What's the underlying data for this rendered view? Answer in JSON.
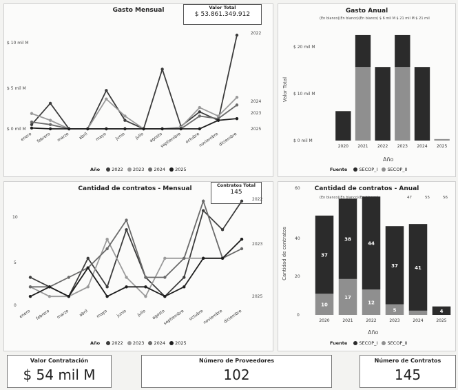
{
  "colors": {
    "y2022": "#3c3c3c",
    "y2023": "#9a9a9a",
    "y2024": "#6a6a6a",
    "y2025": "#1e1e1e",
    "secop1": "#2b2b2b",
    "secop2": "#8f8f8f"
  },
  "gasto_mensual": {
    "title": "Gasto Mensual",
    "total_label": "Valor Total",
    "total_value": "$ 53.861.349.912",
    "y_ticks": [
      "$ 10 mil M",
      "$ 5 mil M",
      "$ 0 mil M"
    ],
    "end_labels": [
      "2022",
      "2024",
      "2023",
      "2025"
    ],
    "legend_title": "Año",
    "legend_items": [
      "2022",
      "2023",
      "2024",
      "2025"
    ]
  },
  "gasto_anual": {
    "title": "Gasto Anual",
    "subtitle": "(En blanco)(En blanco)(En blanco)  $ 6 mil M $ 21 mil M $ 21 mil",
    "y_label": "Valor Total",
    "x_label": "Año",
    "y_ticks": [
      "$ 20 mil M",
      "$ 10 mil M",
      "$ 0 mil M"
    ],
    "legend_title": "Fuente",
    "legend_items": [
      "SECOP_I",
      "SECOP_II"
    ]
  },
  "contratos_mensual": {
    "title": "Cantidad de contratos - Mensual",
    "total_label": "Contratos Total",
    "total_value": "145",
    "y_ticks": [
      "10",
      "5",
      "0"
    ],
    "end_labels": [
      "2022",
      "2023",
      "2025"
    ],
    "legend_title": "Año",
    "legend_items": [
      "2022",
      "2023",
      "2024",
      "2025"
    ]
  },
  "contratos_anual": {
    "title": "Cantidad de contratos - Anual",
    "subtitle": "(En blanco)(En blanco)(En blanco)",
    "top_values": [
      "47",
      "55",
      "56"
    ],
    "y_label": "Cantidad de contratos",
    "x_label": "Año",
    "y_ticks": [
      "60",
      "40",
      "20",
      "0"
    ],
    "legend_title": "Fuente",
    "legend_items": [
      "SECOP_I",
      "SECOP_II"
    ]
  },
  "cards": {
    "valor_label": "Valor Contratación",
    "valor_value": "$ 54 mil M",
    "prov_label": "Número de Proveedores",
    "prov_value": "102",
    "contr_label": "Número de Contratos",
    "contr_value": "145"
  },
  "chart_data": [
    {
      "type": "line",
      "title": "Gasto Mensual",
      "categories": [
        "enero",
        "febrero",
        "marzo",
        "abril",
        "mayo",
        "junio",
        "julio",
        "agosto",
        "septiembre",
        "octubre",
        "noviembre",
        "diciembre"
      ],
      "ylim": [
        0,
        11
      ],
      "series": [
        {
          "name": "2022",
          "values": [
            0.5,
            3,
            0,
            0,
            4.5,
            1,
            0,
            7,
            0.3,
            2,
            1,
            11
          ]
        },
        {
          "name": "2023",
          "values": [
            1.8,
            1,
            0,
            0,
            3.5,
            1.5,
            0,
            0,
            0.2,
            2.5,
            1.5,
            3.7
          ]
        },
        {
          "name": "2024",
          "values": [
            0.8,
            0.5,
            0,
            0,
            0,
            0,
            0,
            0,
            0,
            1.5,
            1.2,
            2.8
          ]
        },
        {
          "name": "2025",
          "values": [
            0.1,
            0,
            0,
            0,
            0,
            0,
            0,
            0,
            0,
            0,
            1,
            1.2
          ]
        }
      ]
    },
    {
      "type": "bar",
      "title": "Gasto Anual",
      "categories": [
        "2020",
        "2021",
        "2022",
        "2023",
        "2024",
        "2025"
      ],
      "ylim": [
        0,
        25
      ],
      "series": [
        {
          "name": "SECOP_I",
          "values": [
            6,
            6.5,
            15,
            6.5,
            15,
            0
          ]
        },
        {
          "name": "SECOP_II",
          "values": [
            0,
            15,
            0,
            15,
            0,
            0.3
          ]
        }
      ]
    },
    {
      "type": "line",
      "title": "Cantidad de contratos - Mensual",
      "categories": [
        "enero",
        "febrero",
        "marzo",
        "abril",
        "mayo",
        "junio",
        "julio",
        "agosto",
        "septiembre",
        "octubre",
        "noviembre",
        "diciembre"
      ],
      "ylim": [
        0,
        12
      ],
      "series": [
        {
          "name": "2022",
          "values": [
            3,
            2,
            1,
            5,
            2,
            8,
            3,
            1,
            3,
            10,
            8,
            11
          ]
        },
        {
          "name": "2023",
          "values": [
            2,
            1,
            1,
            2,
            7,
            3,
            1,
            5,
            5,
            5,
            5,
            7
          ]
        },
        {
          "name": "2024",
          "values": [
            2,
            2,
            3,
            4,
            6,
            9,
            3,
            3,
            5,
            11,
            5,
            6
          ]
        },
        {
          "name": "2025",
          "values": [
            1,
            2,
            1,
            4,
            1,
            2,
            2,
            1,
            2,
            5,
            5,
            7
          ]
        }
      ]
    },
    {
      "type": "bar",
      "title": "Cantidad de contratos - Anual",
      "categories": [
        "2020",
        "2021",
        "2022",
        "2023",
        "2024",
        "2025"
      ],
      "ylim": [
        0,
        60
      ],
      "series": [
        {
          "name": "SECOP_I",
          "values": [
            37,
            38,
            44,
            37,
            41,
            4
          ]
        },
        {
          "name": "SECOP_II",
          "values": [
            10,
            17,
            12,
            5,
            2,
            0
          ]
        }
      ],
      "data_labels": {
        "SECOP_I": [
          "37",
          "38",
          "44",
          "37",
          "41",
          "4"
        ],
        "SECOP_II": [
          "10",
          "17",
          "12",
          "5",
          "",
          ""
        ]
      }
    }
  ]
}
